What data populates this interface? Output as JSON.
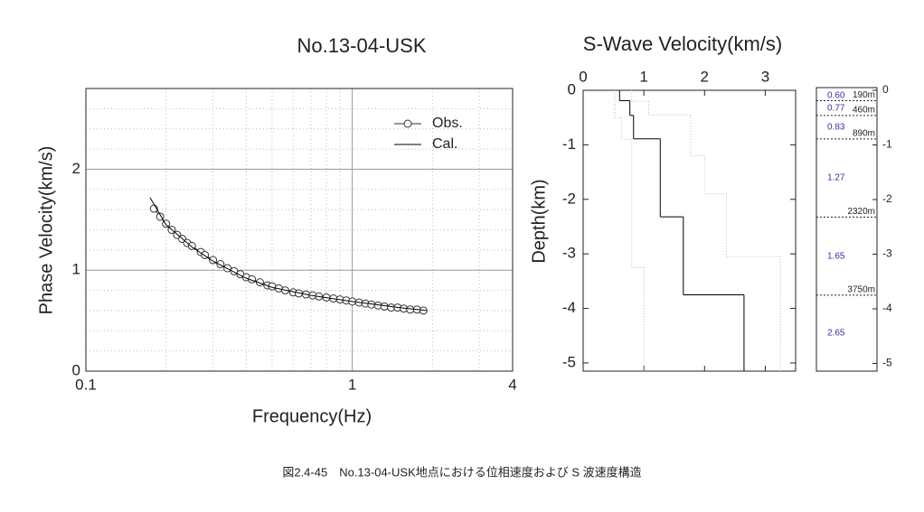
{
  "caption": "図2.4-45　No.13-04-USK地点における位相速度および S 波速度構造",
  "chart_data": [
    {
      "type": "dispersion",
      "title": "No.13-04-USK",
      "x_label": "Frequency(Hz)",
      "y_label": "Phase Velocity(km/s)",
      "xscale": "log",
      "xlim": [
        0.1,
        4
      ],
      "xticks": [
        0.1,
        1,
        4
      ],
      "minor_xticks": [
        0.2,
        0.3,
        0.4,
        0.5,
        0.6,
        0.7,
        0.8,
        0.9,
        2,
        3
      ],
      "ylim": [
        0,
        2.8
      ],
      "yticks": [
        0,
        1,
        2
      ],
      "minor_yticks": [
        0.2,
        0.4,
        0.6,
        0.8,
        1.2,
        1.4,
        1.6,
        1.8,
        2.2,
        2.4,
        2.6
      ],
      "grid": true,
      "legend": "upper-right",
      "series": [
        {
          "name": "Obs.",
          "color": "#333333",
          "marker": "circle",
          "x": [
            0.18,
            0.19,
            0.2,
            0.21,
            0.22,
            0.23,
            0.24,
            0.25,
            0.27,
            0.28,
            0.3,
            0.32,
            0.34,
            0.36,
            0.38,
            0.4,
            0.42,
            0.45,
            0.48,
            0.5,
            0.53,
            0.56,
            0.6,
            0.63,
            0.67,
            0.71,
            0.75,
            0.8,
            0.85,
            0.9,
            0.95,
            1.0,
            1.06,
            1.12,
            1.18,
            1.25,
            1.32,
            1.4,
            1.48,
            1.56,
            1.65,
            1.75,
            1.85
          ],
          "values": [
            1.61,
            1.53,
            1.46,
            1.4,
            1.35,
            1.31,
            1.27,
            1.24,
            1.18,
            1.15,
            1.1,
            1.06,
            1.02,
            0.99,
            0.96,
            0.93,
            0.91,
            0.88,
            0.85,
            0.84,
            0.82,
            0.8,
            0.78,
            0.77,
            0.76,
            0.75,
            0.74,
            0.73,
            0.72,
            0.71,
            0.7,
            0.69,
            0.68,
            0.67,
            0.66,
            0.65,
            0.64,
            0.63,
            0.63,
            0.62,
            0.61,
            0.61,
            0.6
          ]
        },
        {
          "name": "Cal.",
          "color": "#000000",
          "marker": "none",
          "x": [
            0.174,
            0.2,
            0.25,
            0.3,
            0.4,
            0.5,
            0.7,
            1.0,
            1.5,
            1.9
          ],
          "values": [
            1.72,
            1.45,
            1.23,
            1.09,
            0.92,
            0.83,
            0.75,
            0.69,
            0.63,
            0.6
          ]
        }
      ]
    },
    {
      "type": "step-profile",
      "title": "S-Wave Velocity(km/s)",
      "y_label": "Depth(km)",
      "xlim": [
        0,
        3.5
      ],
      "xticks": [
        0,
        1,
        2,
        3
      ],
      "ylim": [
        -5.15,
        0
      ],
      "yticks": [
        0,
        -1,
        -2,
        -3,
        -4,
        -5
      ],
      "series": [
        {
          "color": "#000000",
          "style": "solid",
          "values": [
            0.6,
            0.77,
            0.83,
            1.27,
            1.65,
            2.65
          ],
          "y": [
            0,
            -0.19,
            -0.46,
            -0.89,
            -2.32,
            -3.75
          ]
        },
        {
          "color": "#bbbbbb",
          "style": "dotted",
          "values": [
            0.52,
            0.63,
            0.8,
            1.0
          ],
          "y": [
            0,
            -0.5,
            -0.9,
            -3.25
          ]
        },
        {
          "color": "#bbbbbb",
          "style": "dotted",
          "values": [
            0.8,
            1.08,
            1.77,
            2.0,
            2.36,
            3.25
          ],
          "y": [
            0,
            -0.2,
            -0.45,
            -1.2,
            -1.9,
            -3.05
          ]
        }
      ]
    },
    {
      "type": "layer-column",
      "ylim": [
        -5150,
        0
      ],
      "yticks": [
        {
          "value": 0,
          "label": "0"
        },
        {
          "value": -1000,
          "label": "-1"
        },
        {
          "value": -2000,
          "label": "-2"
        },
        {
          "value": -3000,
          "label": "-3"
        },
        {
          "value": -4000,
          "label": "-4"
        },
        {
          "value": -5000,
          "label": "-5"
        }
      ],
      "values": [
        0.6,
        0.77,
        0.83,
        1.27,
        1.65,
        2.65
      ],
      "value_labels": [
        "0.60",
        "0.77",
        "0.83",
        "1.27",
        "1.65",
        "2.65"
      ],
      "color": "#3333aa",
      "boundaries": [
        -190,
        -460,
        -890,
        -2320,
        -3750
      ],
      "boundary_labels": [
        "190m",
        "460m",
        "890m",
        "2320m",
        "3750m"
      ]
    }
  ]
}
